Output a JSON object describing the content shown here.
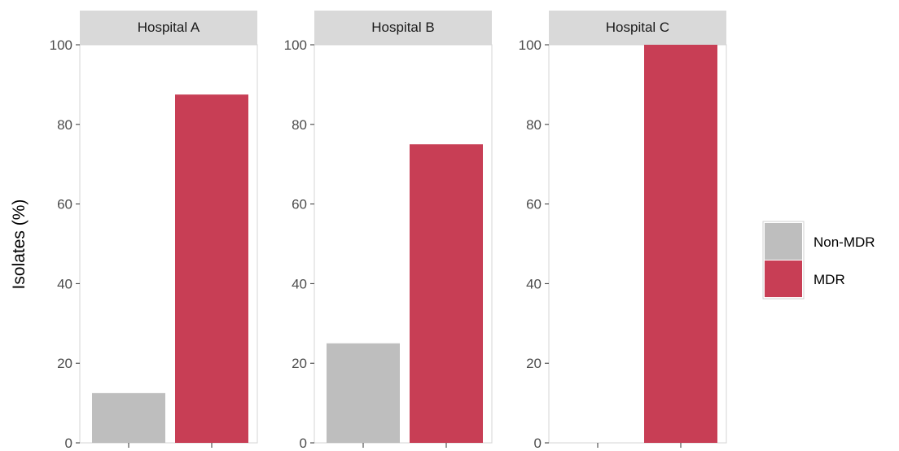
{
  "chart_data": {
    "type": "bar",
    "ylabel": "Isolates (%)",
    "xlabel": "",
    "ylim": [
      0,
      100
    ],
    "y_ticks": [
      "0",
      "20",
      "40",
      "60",
      "80",
      "100"
    ],
    "grid": false,
    "legend_position": "right",
    "legend": [
      {
        "name": "Non-MDR",
        "color": "#BEBEBE"
      },
      {
        "name": "MDR",
        "color": "#C83E55"
      }
    ],
    "panels": [
      {
        "title": "Hospital A",
        "values": [
          12.5,
          87.5
        ]
      },
      {
        "title": "Hospital B",
        "values": [
          25,
          75
        ]
      },
      {
        "title": "Hospital C",
        "values": [
          0,
          100
        ]
      }
    ]
  }
}
